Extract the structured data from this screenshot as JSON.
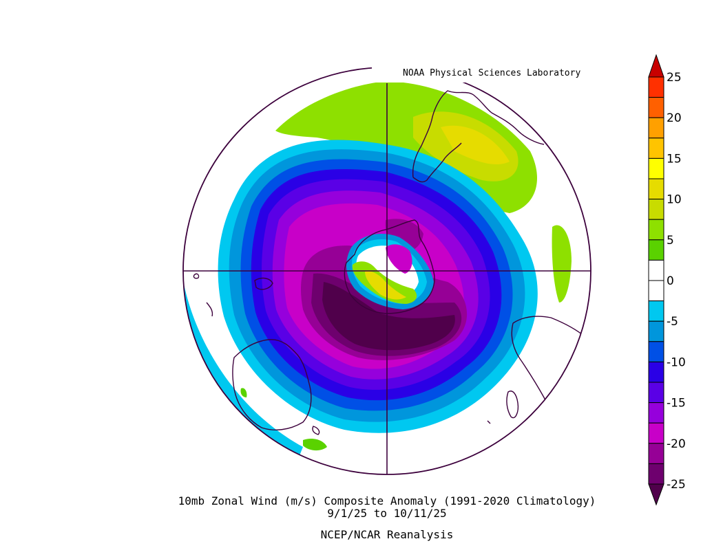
{
  "credit": "NOAA Physical Sciences Laboratory",
  "caption": {
    "line1": "10mb Zonal Wind (m/s) Composite Anomaly (1991-2020 Climatology)",
    "line2": "9/1/25  to 10/11/25",
    "line3": "NCEP/NCAR Reanalysis"
  },
  "colorbar": {
    "ticks": [
      "25",
      "20",
      "15",
      "10",
      "5",
      "0",
      "-5",
      "-10",
      "-15",
      "-20",
      "-25"
    ],
    "levels": [
      {
        "from": 22.5,
        "to": 25,
        "color": "#ff3000"
      },
      {
        "from": 20,
        "to": 22.5,
        "color": "#ff6000"
      },
      {
        "from": 17.5,
        "to": 20,
        "color": "#ffa000"
      },
      {
        "from": 15,
        "to": 17.5,
        "color": "#ffc400"
      },
      {
        "from": 12.5,
        "to": 15,
        "color": "#ffff00"
      },
      {
        "from": 10,
        "to": 12.5,
        "color": "#e6dc00"
      },
      {
        "from": 7.5,
        "to": 10,
        "color": "#c8dc00"
      },
      {
        "from": 5,
        "to": 7.5,
        "color": "#8ee000"
      },
      {
        "from": 2.5,
        "to": 5,
        "color": "#5ad200"
      },
      {
        "from": 0,
        "to": 2.5,
        "color": "#ffffff"
      },
      {
        "from": -2.5,
        "to": 0,
        "color": "#ffffff"
      },
      {
        "from": -5,
        "to": -2.5,
        "color": "#00c8f0"
      },
      {
        "from": -7.5,
        "to": -5,
        "color": "#0096dc"
      },
      {
        "from": -10,
        "to": -7.5,
        "color": "#0050e6"
      },
      {
        "from": -12.5,
        "to": -10,
        "color": "#2a00e6"
      },
      {
        "from": -15,
        "to": -12.5,
        "color": "#5a00e6"
      },
      {
        "from": -17.5,
        "to": -15,
        "color": "#9600dc"
      },
      {
        "from": -20,
        "to": -17.5,
        "color": "#c800c8"
      },
      {
        "from": -22.5,
        "to": -20,
        "color": "#960096"
      },
      {
        "from": -25,
        "to": -22.5,
        "color": "#6e006e"
      }
    ],
    "over_color": "#c80000",
    "under_color": "#50004b"
  },
  "map": {
    "projection": "south-polar-stereographic",
    "line_color": "#3c003c"
  }
}
